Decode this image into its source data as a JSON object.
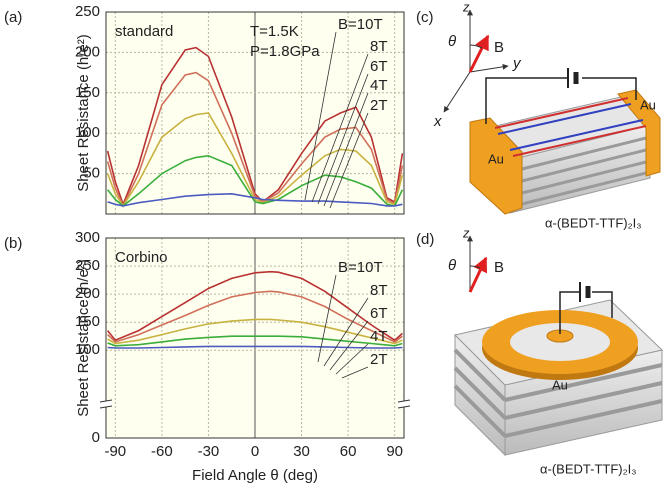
{
  "chart_data": [
    {
      "type": "line",
      "panel": "(a)",
      "ylabel": "Sheet Resistance (h/e²)",
      "annotations": [
        "standard",
        "T=1.5K",
        "P=1.8GPa"
      ],
      "x": [
        -95,
        -90,
        -85,
        -75,
        -60,
        -45,
        -38,
        -30,
        -15,
        0,
        5,
        15,
        30,
        45,
        55,
        65,
        75,
        85,
        90,
        95
      ],
      "series": [
        {
          "name": "B=10T",
          "color": "#b83232",
          "values": [
            78,
            40,
            12,
            60,
            160,
            203,
            206,
            195,
            120,
            25,
            15,
            30,
            75,
            115,
            125,
            132,
            95,
            20,
            15,
            75
          ]
        },
        {
          "name": "8T",
          "color": "#d0705a",
          "values": [
            65,
            32,
            10,
            50,
            135,
            172,
            175,
            165,
            100,
            22,
            15,
            26,
            62,
            95,
            105,
            107,
            80,
            18,
            13,
            60
          ]
        },
        {
          "name": "6T",
          "color": "#c8b240",
          "values": [
            50,
            25,
            10,
            40,
            95,
            118,
            123,
            125,
            75,
            18,
            14,
            22,
            48,
            72,
            80,
            78,
            60,
            15,
            12,
            48
          ]
        },
        {
          "name": "4T",
          "color": "#3aae3a",
          "values": [
            30,
            18,
            10,
            25,
            50,
            66,
            70,
            72,
            60,
            15,
            13,
            18,
            35,
            48,
            46,
            40,
            32,
            12,
            10,
            30
          ]
        },
        {
          "name": "2T",
          "color": "#4a5cc0",
          "values": [
            15,
            12,
            10,
            14,
            18,
            22,
            23,
            24,
            25,
            20,
            18,
            17,
            16,
            16,
            15,
            14,
            13,
            10,
            10,
            12
          ]
        }
      ],
      "xlim": [
        -96,
        96
      ],
      "ylim": [
        0,
        250
      ],
      "yticks": [
        50,
        100,
        150,
        200,
        250
      ],
      "grid": true
    },
    {
      "type": "line",
      "panel": "(b)",
      "ylabel": "Sheet Resistance (h/e²)",
      "xlabel": "Field Angle θ (deg)",
      "annotations": [
        "Corbino"
      ],
      "x": [
        -95,
        -90,
        -75,
        -60,
        -45,
        -30,
        -15,
        0,
        10,
        15,
        30,
        45,
        60,
        75,
        90,
        95
      ],
      "series": [
        {
          "name": "B=10T",
          "color": "#b83232",
          "values": [
            135,
            118,
            135,
            160,
            185,
            210,
            228,
            238,
            240,
            239,
            228,
            205,
            175,
            145,
            118,
            130
          ]
        },
        {
          "name": "8T",
          "color": "#d0705a",
          "values": [
            128,
            115,
            128,
            145,
            162,
            180,
            195,
            203,
            205,
            204,
            195,
            178,
            155,
            135,
            115,
            125
          ]
        },
        {
          "name": "6T",
          "color": "#c8b240",
          "values": [
            120,
            112,
            118,
            128,
            138,
            147,
            152,
            155,
            155,
            154,
            150,
            142,
            132,
            122,
            112,
            118
          ]
        },
        {
          "name": "4T",
          "color": "#3aae3a",
          "values": [
            113,
            108,
            110,
            115,
            120,
            123,
            125,
            125,
            125,
            125,
            124,
            120,
            116,
            112,
            108,
            112
          ]
        },
        {
          "name": "2T",
          "color": "#4a5cc0",
          "values": [
            105,
            104,
            104,
            105,
            106,
            107,
            107,
            107,
            107,
            107,
            107,
            106,
            105,
            104,
            104,
            105
          ]
        }
      ],
      "xlim": [
        -96,
        96
      ],
      "xticks": [
        -90,
        -60,
        -30,
        0,
        30,
        60,
        90
      ],
      "ylim": [
        0,
        300
      ],
      "ybreak": [
        5,
        15
      ],
      "yticks": [
        0,
        100,
        150,
        200,
        250,
        300
      ],
      "grid": true
    }
  ],
  "diagrams": [
    {
      "label": "(c)",
      "axes": [
        "z",
        "y",
        "x"
      ],
      "angle": "θ",
      "field": "B",
      "electrodes": [
        "Au",
        "Au"
      ],
      "material": "α-(BEDT-TTF)₂I₃"
    },
    {
      "label": "(d)",
      "axes": [
        "z"
      ],
      "angle": "θ",
      "field": "B",
      "electrodes": [
        "Au"
      ],
      "material": "α-(BEDT-TTF)₂I₃"
    }
  ]
}
